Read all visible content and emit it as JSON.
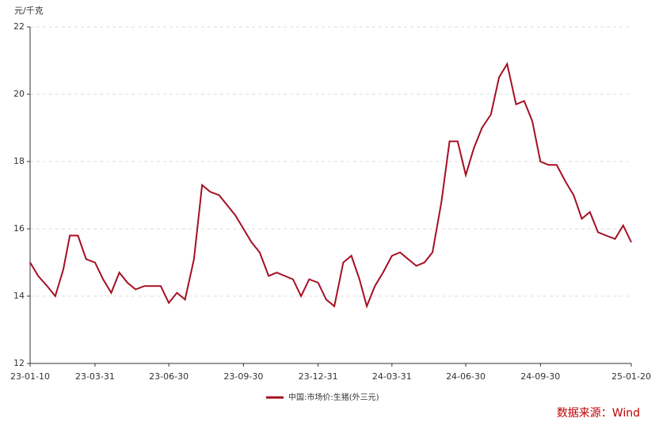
{
  "chart_data": {
    "type": "line",
    "y_label": "元/千克",
    "source": "数据来源：Wind",
    "x": [
      "23-01-10",
      "23-01-20",
      "23-01-31",
      "23-02-10",
      "23-02-20",
      "23-02-28",
      "23-03-10",
      "23-03-20",
      "23-03-31",
      "23-04-10",
      "23-04-20",
      "23-04-30",
      "23-05-10",
      "23-05-20",
      "23-05-31",
      "23-06-10",
      "23-06-20",
      "23-06-30",
      "23-07-10",
      "23-07-20",
      "23-07-31",
      "23-08-10",
      "23-08-20",
      "23-08-31",
      "23-09-10",
      "23-09-20",
      "23-09-30",
      "23-10-10",
      "23-10-20",
      "23-10-31",
      "23-11-10",
      "23-11-20",
      "23-11-30",
      "23-12-10",
      "23-12-20",
      "23-12-31",
      "24-01-10",
      "24-01-20",
      "24-01-31",
      "24-02-10",
      "24-02-20",
      "24-02-29",
      "24-03-10",
      "24-03-20",
      "24-03-31",
      "24-04-10",
      "24-04-20",
      "24-04-30",
      "24-05-10",
      "24-05-20",
      "24-05-31",
      "24-06-10",
      "24-06-20",
      "24-06-30",
      "24-07-10",
      "24-07-20",
      "24-07-31",
      "24-08-10",
      "24-08-20",
      "24-08-31",
      "24-09-10",
      "24-09-20",
      "24-09-30",
      "24-10-10",
      "24-10-20",
      "24-10-31",
      "24-11-10",
      "24-11-20",
      "24-11-30",
      "24-12-10",
      "24-12-20",
      "24-12-31",
      "25-01-10",
      "25-01-20"
    ],
    "series": [
      {
        "name": "中国:市场价:生猪(外三元)",
        "color": "#a50f23",
        "values": [
          15.0,
          14.6,
          14.3,
          14.0,
          14.8,
          15.8,
          15.8,
          15.1,
          15.0,
          14.5,
          14.1,
          14.7,
          14.4,
          14.2,
          14.3,
          14.3,
          14.3,
          13.8,
          14.1,
          13.9,
          15.1,
          17.3,
          17.1,
          17.0,
          16.7,
          16.4,
          16.0,
          15.6,
          15.3,
          14.6,
          14.7,
          14.6,
          14.5,
          14.0,
          14.5,
          14.4,
          13.9,
          13.7,
          15.0,
          15.2,
          14.5,
          13.7,
          14.3,
          14.7,
          15.2,
          15.3,
          15.1,
          14.9,
          15.0,
          15.3,
          16.8,
          18.6,
          18.6,
          17.6,
          18.4,
          19.0,
          19.4,
          20.5,
          20.9,
          19.7,
          19.8,
          19.2,
          18.0,
          17.9,
          17.9,
          17.4,
          17.0,
          16.3,
          16.5,
          15.9,
          15.8,
          15.7,
          16.1,
          15.6
        ]
      }
    ],
    "xlim": [
      "23-01-10",
      "25-01-20"
    ],
    "xticks": [
      "23-01-10",
      "23-03-31",
      "23-06-30",
      "23-09-30",
      "23-12-31",
      "24-03-31",
      "24-06-30",
      "24-09-30",
      "25-01-20"
    ],
    "ylim": [
      12,
      22
    ],
    "yticks": [
      12,
      14,
      16,
      18,
      20,
      22
    ],
    "grid": true
  }
}
